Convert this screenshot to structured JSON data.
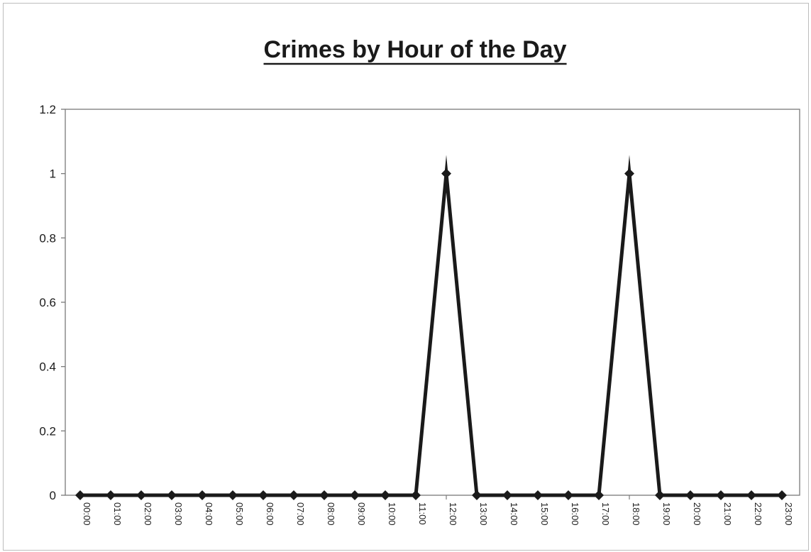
{
  "chart_data": {
    "type": "line",
    "title": "Crimes by Hour of the Day",
    "xlabel": "",
    "ylabel": "",
    "categories": [
      "00:00",
      "01:00",
      "02:00",
      "03:00",
      "04:00",
      "05:00",
      "06:00",
      "07:00",
      "08:00",
      "09:00",
      "10:00",
      "11:00",
      "12:00",
      "13:00",
      "14:00",
      "15:00",
      "16:00",
      "17:00",
      "18:00",
      "19:00",
      "20:00",
      "21:00",
      "22:00",
      "23:00"
    ],
    "series": [
      {
        "values": [
          0,
          0,
          0,
          0,
          0,
          0,
          0,
          0,
          0,
          0,
          0,
          0,
          1,
          0,
          0,
          0,
          0,
          0,
          1,
          0,
          0,
          0,
          0,
          0
        ]
      }
    ],
    "ylim": [
      0,
      1.2
    ],
    "yticks": [
      "0",
      "0.2",
      "0.4",
      "0.6",
      "0.8",
      "1",
      "1.2"
    ],
    "grid": false,
    "legend": "none",
    "colors": {
      "line": "#1a1a1a",
      "axis": "#7a7a7a"
    }
  }
}
